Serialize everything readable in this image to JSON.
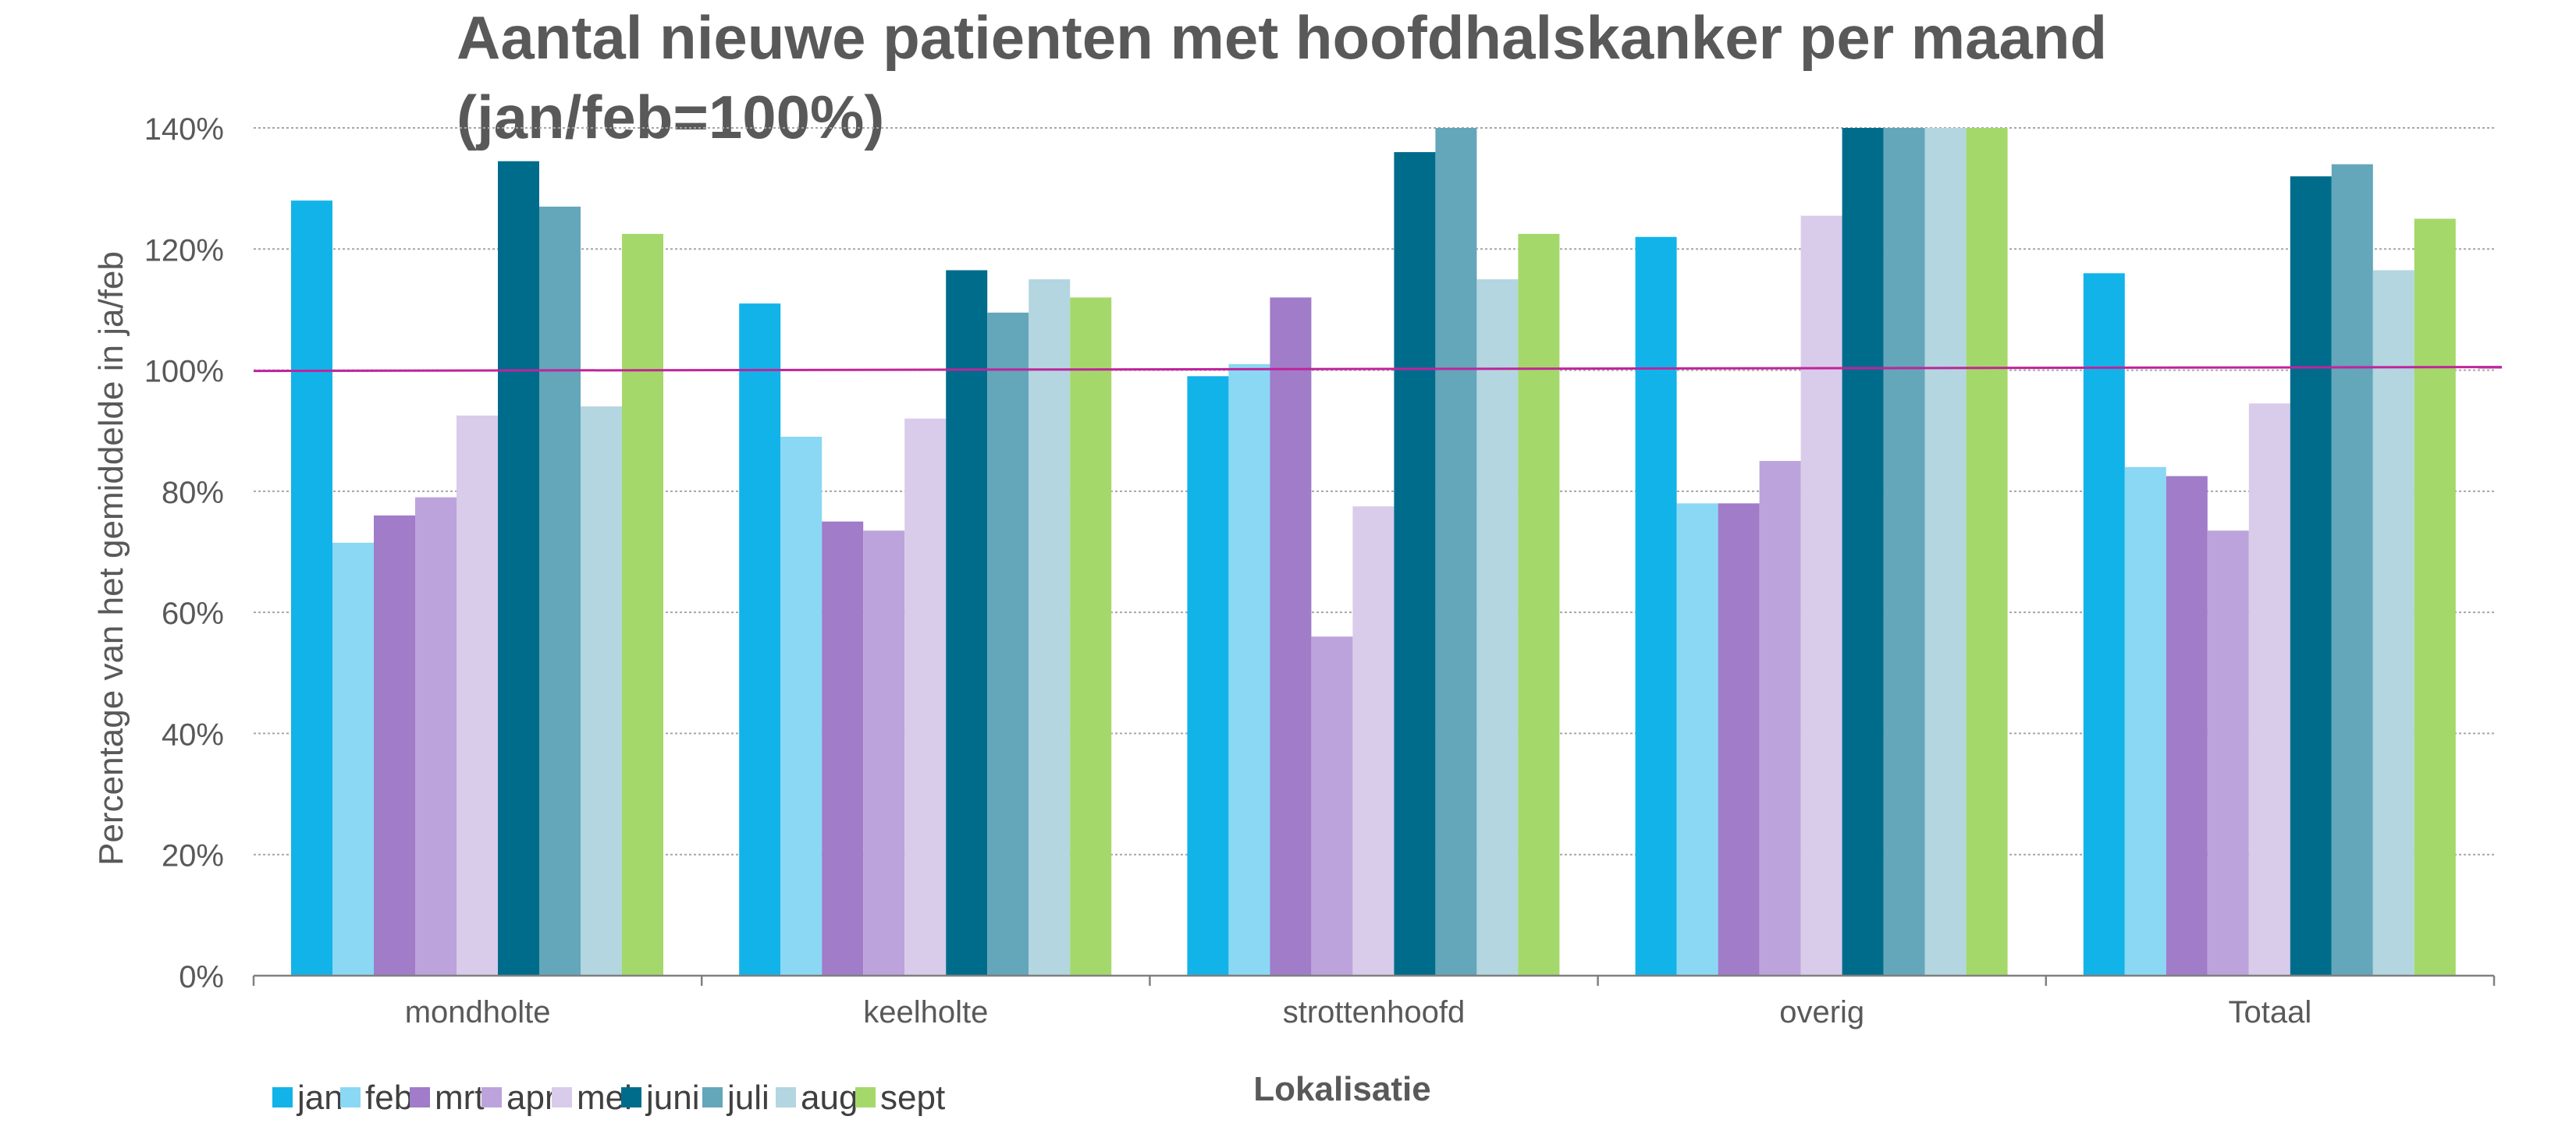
{
  "chart_data": {
    "type": "bar",
    "title_line1": "Aantal nieuwe patienten met hoofdhalskanker per maand",
    "title_line2": "(jan/feb=100%)",
    "xlabel": "Lokalisatie",
    "ylabel": "Percentage van het gemiddelde in ja/feb",
    "ylim": [
      0,
      140
    ],
    "yticks": [
      "0%",
      "20%",
      "40%",
      "60%",
      "80%",
      "100%",
      "120%",
      "140%"
    ],
    "reference_line": 100,
    "grid": true,
    "legend_position": "bottom-left",
    "categories": [
      "mondholte",
      "keelholte",
      "strottenhoofd",
      "overig",
      "Totaal"
    ],
    "series": [
      {
        "name": "jan",
        "color": "#12B3E8",
        "values": [
          128,
          111,
          99,
          122,
          116
        ]
      },
      {
        "name": "feb",
        "color": "#8AD8F4",
        "values": [
          71.5,
          89,
          101,
          78,
          84
        ]
      },
      {
        "name": "mrt",
        "color": "#A07CC9",
        "values": [
          76,
          75,
          112,
          78,
          82.5
        ]
      },
      {
        "name": "apr",
        "color": "#BDA3DB",
        "values": [
          79,
          73.5,
          56,
          85,
          73.5
        ]
      },
      {
        "name": "mei",
        "color": "#D9CBEA",
        "values": [
          92.5,
          92,
          77.5,
          125.5,
          94.5
        ]
      },
      {
        "name": "juni",
        "color": "#006C8C",
        "values": [
          134.5,
          116.5,
          136,
          142,
          132
        ]
      },
      {
        "name": "juli",
        "color": "#64A6BA",
        "values": [
          127,
          109.5,
          142,
          142,
          134
        ]
      },
      {
        "name": "aug",
        "color": "#B3D6E0",
        "values": [
          94,
          115,
          115,
          142,
          116.5
        ]
      },
      {
        "name": "sept",
        "color": "#A5D86A",
        "values": [
          122.5,
          112,
          122.5,
          142,
          125
        ]
      }
    ],
    "colors": {
      "grid": "#A6A6A6",
      "axis": "#808080",
      "reference_line": "#C0249A",
      "text": "#595959"
    }
  }
}
